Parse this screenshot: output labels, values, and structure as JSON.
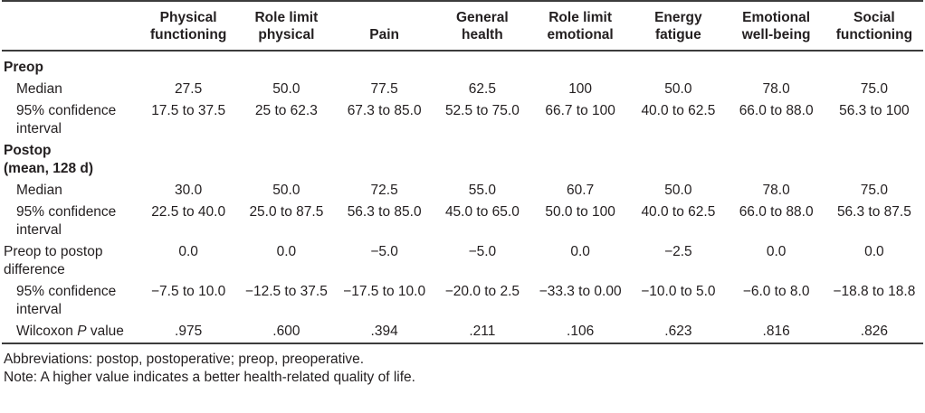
{
  "table": {
    "columns": [
      "Physical\nfunctioning",
      "Role limit\nphysical",
      "Pain",
      "General\nhealth",
      "Role limit\nemotional",
      "Energy\nfatigue",
      "Emotional\nwell-being",
      "Social\nfunctioning"
    ],
    "rows": [
      {
        "label": "Preop",
        "style": "section",
        "values": []
      },
      {
        "label": "Median",
        "style": "indent",
        "values": [
          "27.5",
          "50.0",
          "77.5",
          "62.5",
          "100",
          "50.0",
          "78.0",
          "75.0"
        ]
      },
      {
        "label": "95% confidence interval",
        "style": "indent",
        "values": [
          "17.5 to 37.5",
          "25 to 62.3",
          "67.3 to 85.0",
          "52.5 to 75.0",
          "66.7 to 100",
          "40.0 to 62.5",
          "66.0 to 88.0",
          "56.3 to 100"
        ]
      },
      {
        "label": "Postop\n(mean, 128 d)",
        "style": "section",
        "values": []
      },
      {
        "label": "Median",
        "style": "indent",
        "values": [
          "30.0",
          "50.0",
          "72.5",
          "55.0",
          "60.7",
          "50.0",
          "78.0",
          "75.0"
        ]
      },
      {
        "label": "95% confidence interval",
        "style": "indent",
        "values": [
          "22.5 to 40.0",
          "25.0 to 87.5",
          "56.3 to 85.0",
          "45.0 to 65.0",
          "50.0 to 100",
          "40.0 to 62.5",
          "66.0 to 88.0",
          "56.3 to 87.5"
        ]
      },
      {
        "label": "Preop to postop difference",
        "style": "plain",
        "values": [
          "0.0",
          "0.0",
          "−5.0",
          "−5.0",
          "0.0",
          "−2.5",
          "0.0",
          "0.0"
        ]
      },
      {
        "label": "95% confidence interval",
        "style": "indent",
        "values": [
          "−7.5 to 10.0",
          "−12.5 to 37.5",
          "−17.5 to 10.0",
          "−20.0 to 2.5",
          "−33.3 to 0.00",
          "−10.0 to 5.0",
          "−6.0 to 8.0",
          "−18.8 to 18.8"
        ]
      },
      {
        "label": "Wilcoxon P value",
        "style": "indent",
        "italic": "P",
        "values": [
          ".975",
          ".600",
          ".394",
          ".211",
          ".106",
          ".623",
          ".816",
          ".826"
        ]
      }
    ],
    "footnotes": {
      "abbreviations": "Abbreviations: postop, postoperative; preop, preoperative.",
      "note": "Note: A higher value indicates a better health-related quality of life."
    }
  }
}
